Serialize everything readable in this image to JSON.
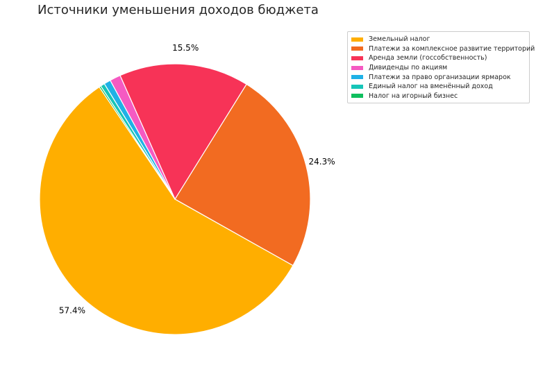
{
  "chart_data": {
    "type": "pie",
    "title": "Источники уменьшения доходов бюджета",
    "legend_position": "top-right",
    "slices": [
      {
        "label": "Земельный налог",
        "value": 57.4,
        "pct_label": "57.4%",
        "color": "#FFAE00"
      },
      {
        "label": "Платежи за комплексное развитие территорий",
        "value": 24.3,
        "pct_label": "24.3%",
        "color": "#F26B21"
      },
      {
        "label": "Аренда земли (госсобственность)",
        "value": 15.5,
        "pct_label": "15.5%",
        "color": "#F73357"
      },
      {
        "label": "Дивиденды по акциям",
        "value": 1.3,
        "pct_label": "",
        "color": "#F55AC2"
      },
      {
        "label": "Платежи за право организации ярмарок",
        "value": 0.8,
        "pct_label": "",
        "color": "#1FB1E6"
      },
      {
        "label": "Единый налог на вменённый доход",
        "value": 0.5,
        "pct_label": "",
        "color": "#16C5B8"
      },
      {
        "label": "Налог на игорный бизнес",
        "value": 0.2,
        "pct_label": "",
        "color": "#0FBF5E"
      }
    ]
  }
}
